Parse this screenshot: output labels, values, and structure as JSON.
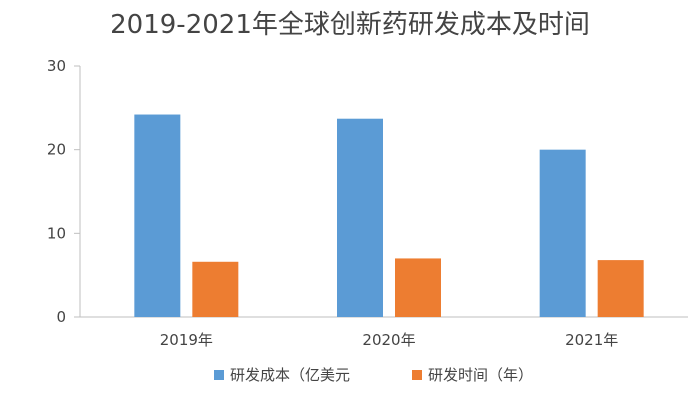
{
  "chart_data": {
    "type": "bar",
    "title": "2019-2021年全球创新药研发成本及时间",
    "categories": [
      "2019年",
      "2020年",
      "2021年"
    ],
    "series": [
      {
        "name": "研发成本（亿美元",
        "color": "#5B9BD5",
        "values": [
          24.2,
          23.7,
          20.0
        ]
      },
      {
        "name": "研发时间（年）",
        "color": "#ED7D31",
        "values": [
          6.6,
          7.0,
          6.8
        ]
      }
    ],
    "ylim": [
      0,
      30
    ],
    "yticks": [
      0,
      10,
      20,
      30
    ],
    "grid": false,
    "legend": "bottom",
    "xlabel": "",
    "ylabel": ""
  }
}
